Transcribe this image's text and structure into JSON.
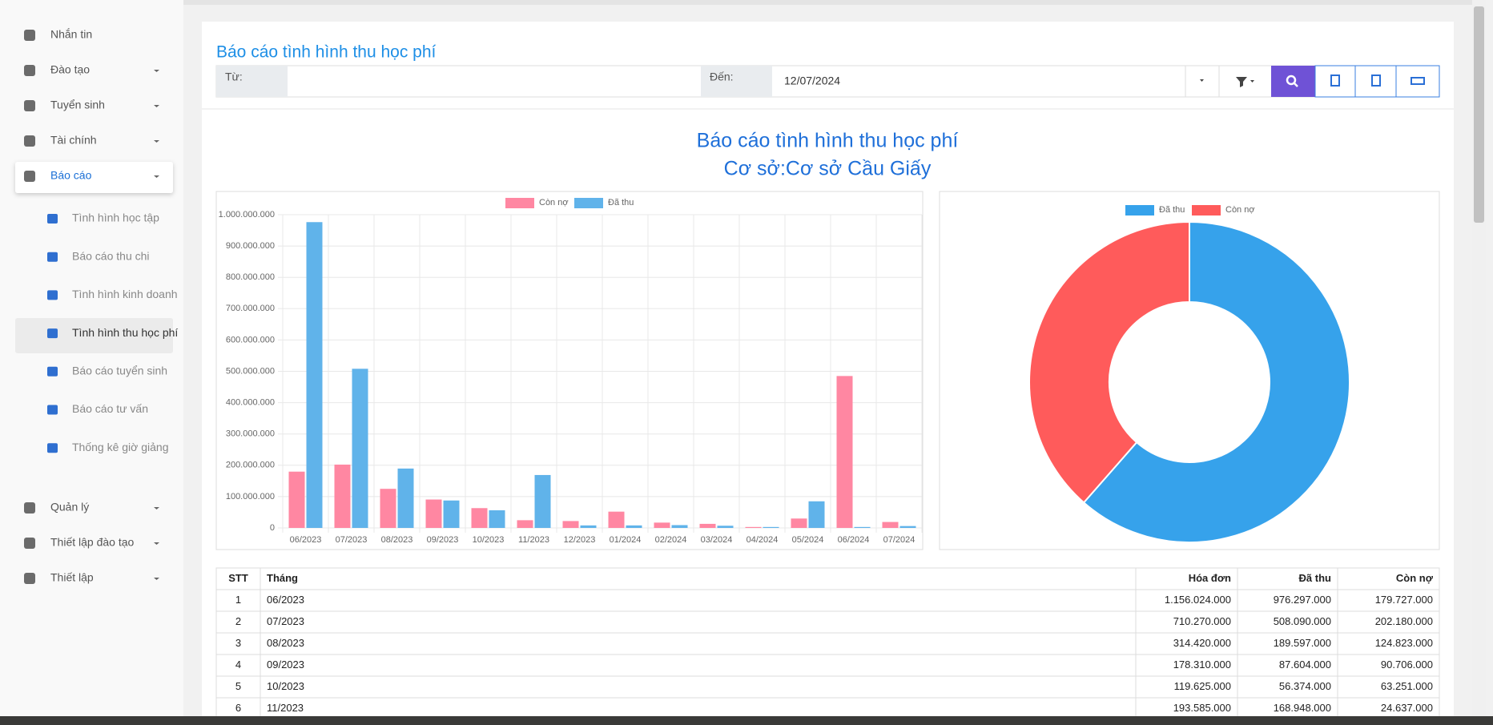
{
  "sidebar": {
    "menu_top": [
      "Nhắn tin",
      "Đào tạo",
      "Tuyển sinh",
      "Tài chính",
      "Báo cáo"
    ],
    "submenu": [
      "Tình hình học tập",
      "Báo cáo thu chi",
      "Tình hình kinh doanh",
      "Tình hình thu học phí",
      "Báo cáo tuyển sinh",
      "Báo cáo tư vấn",
      "Thống kê giờ giảng"
    ],
    "menu_bottom": [
      "Quản lý",
      "Thiết lập đào tạo",
      "Thiết lập"
    ]
  },
  "page": {
    "title": "Báo cáo tình hình thu học phí",
    "filter": {
      "from_label": "Từ:",
      "to_label": "Đến:",
      "to_value": "12/07/2024"
    }
  },
  "report": {
    "title": "Báo cáo tình hình thu học phí",
    "subtitle": "Cơ sở:Cơ sở Cầu Giấy"
  },
  "chart_data": [
    {
      "type": "bar",
      "categories": [
        "06/2023",
        "07/2023",
        "08/2023",
        "09/2023",
        "10/2023",
        "11/2023",
        "12/2023",
        "01/2024",
        "02/2024",
        "03/2024",
        "04/2024",
        "05/2024",
        "06/2024",
        "07/2024"
      ],
      "series": [
        {
          "name": "Còn nợ",
          "color": "#ff87a2",
          "values": [
            179727000,
            202180000,
            124823000,
            90706000,
            63251000,
            24637000,
            22000000,
            52000000,
            17000000,
            13000000,
            3000000,
            30000000,
            485000000,
            19000000
          ]
        },
        {
          "name": "Đã thu",
          "color": "#60b3ea",
          "values": [
            976297000,
            508090000,
            189597000,
            87604000,
            56374000,
            168948000,
            8000000,
            8000000,
            9000000,
            7000000,
            3000000,
            85000000,
            3000000,
            6000000
          ]
        }
      ],
      "ylim": [
        0,
        1000000000
      ],
      "yticks": [
        0,
        {
          "value": 100000000,
          "label": "100.000.000"
        },
        {
          "value": 200000000,
          "label": "200.000.000"
        },
        {
          "value": 300000000,
          "label": "300.000.000"
        },
        {
          "value": 400000000,
          "label": "400.000.000"
        },
        {
          "value": 500000000,
          "label": "500.000.000"
        },
        {
          "value": 600000000,
          "label": "600.000.000"
        },
        {
          "value": 700000000,
          "label": "700.000.000"
        },
        {
          "value": 800000000,
          "label": "800.000.000"
        },
        {
          "value": 900000000,
          "label": "900.000.000"
        },
        {
          "value": 1000000000,
          "label": "1.000.000.000"
        }
      ],
      "grid": true,
      "legend": "top"
    },
    {
      "type": "pie",
      "categories": [
        "Đã thu",
        "Còn nợ"
      ],
      "values": [
        2116000000,
        1327000000
      ],
      "colors": [
        "#36a2eb",
        "#ff5b5b"
      ],
      "donut": true,
      "legend": "top"
    }
  ],
  "table": {
    "columns": [
      "STT",
      "Tháng",
      "Hóa đơn",
      "Đã thu",
      "Còn nợ"
    ],
    "rows": [
      [
        "1",
        "06/2023",
        "1.156.024.000",
        "976.297.000",
        "179.727.000"
      ],
      [
        "2",
        "07/2023",
        "710.270.000",
        "508.090.000",
        "202.180.000"
      ],
      [
        "3",
        "08/2023",
        "314.420.000",
        "189.597.000",
        "124.823.000"
      ],
      [
        "4",
        "09/2023",
        "178.310.000",
        "87.604.000",
        "90.706.000"
      ],
      [
        "5",
        "10/2023",
        "119.625.000",
        "56.374.000",
        "63.251.000"
      ],
      [
        "6",
        "11/2023",
        "193.585.000",
        "168.948.000",
        "24.637.000"
      ]
    ]
  }
}
